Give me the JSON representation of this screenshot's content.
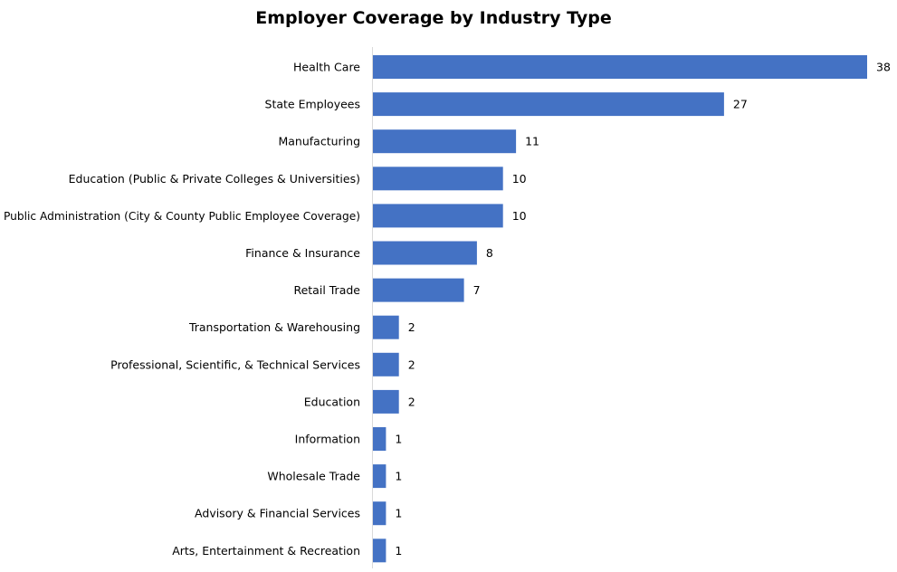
{
  "chart_data": {
    "type": "bar",
    "orientation": "horizontal",
    "title": "Employer Coverage by Industry Type",
    "xlabel": "",
    "ylabel": "",
    "categories": [
      "Health Care",
      "State Employees",
      "Manufacturing",
      "Education (Public & Private Colleges & Universities)",
      "Public Administration (City & County Public Employee Coverage)",
      "Finance & Insurance",
      "Retail Trade",
      "Transportation & Warehousing",
      "Professional, Scientific, & Technical Services",
      "Education",
      "Information",
      "Wholesale Trade",
      "Advisory & Financial Services",
      "Arts, Entertainment & Recreation"
    ],
    "values": [
      38,
      27,
      11,
      10,
      10,
      8,
      7,
      2,
      2,
      2,
      1,
      1,
      1,
      1
    ],
    "data_labels": [
      "38",
      "27",
      "11",
      "10",
      "10",
      "8",
      "7",
      "2",
      "2",
      "2",
      "1",
      "1",
      "1",
      "1"
    ],
    "xlim": [
      0,
      38
    ],
    "grid": false,
    "legend": "none",
    "bar_color": "#4472C4",
    "axis_color": "#D9D9D9"
  }
}
